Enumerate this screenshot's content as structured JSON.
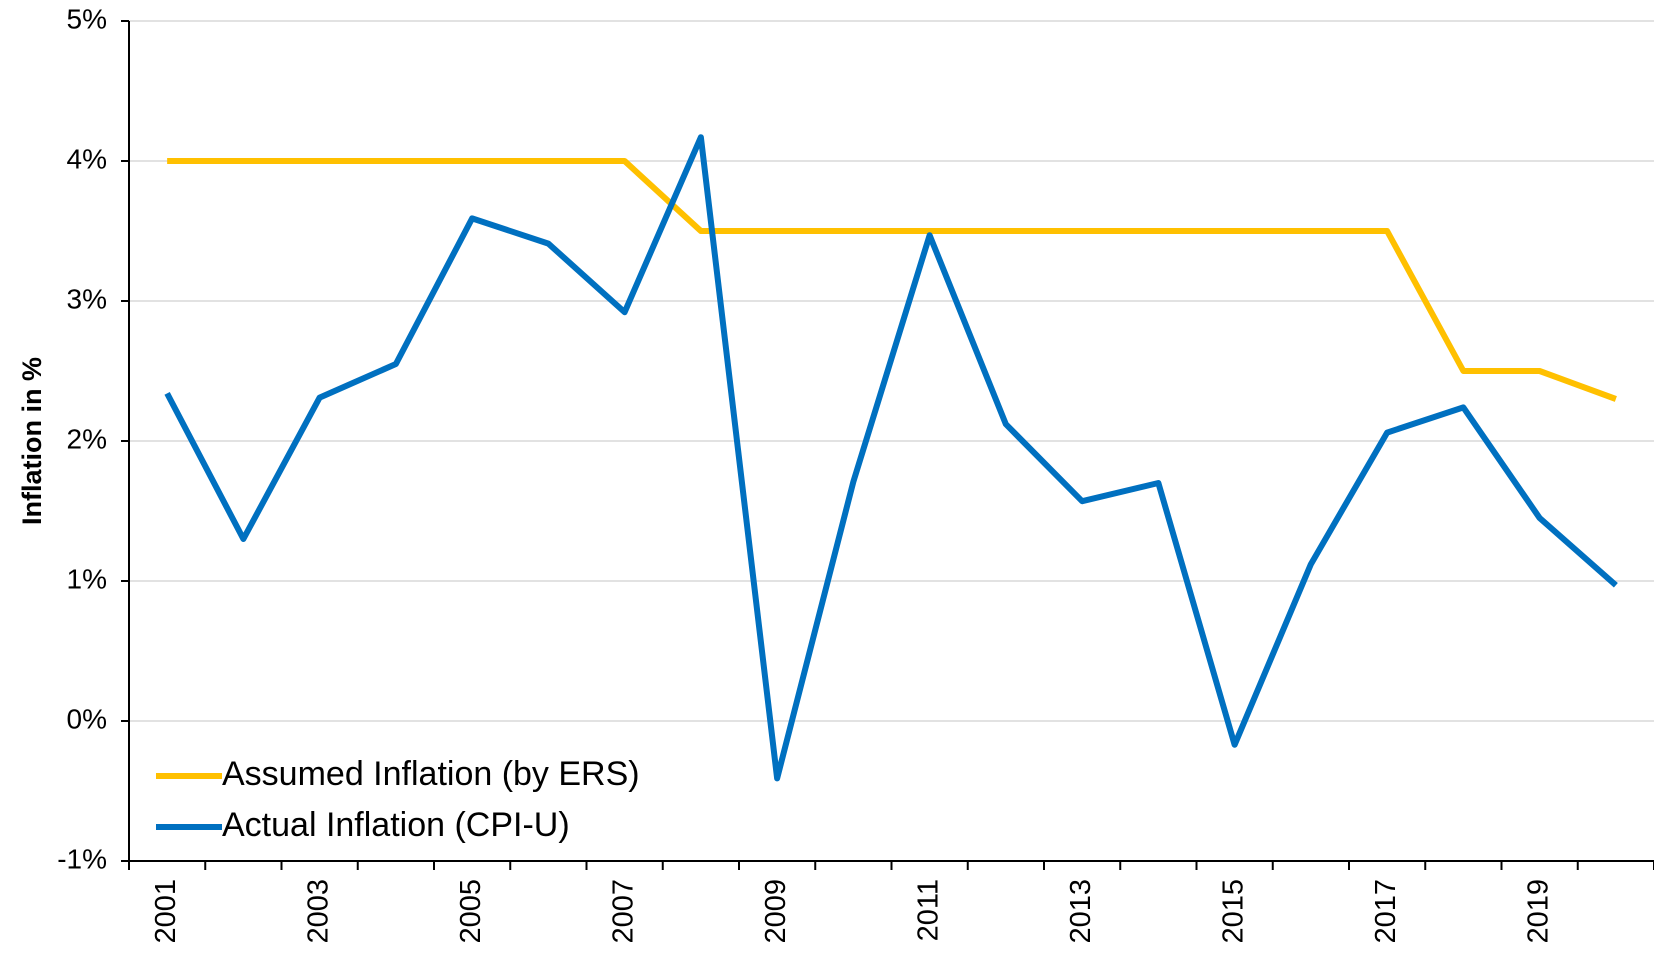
{
  "chart_data": {
    "type": "line",
    "y_label": "Inflation in %",
    "categories": [
      "2001",
      null,
      "2003",
      null,
      "2005",
      null,
      "2007",
      null,
      "2009",
      null,
      "2011",
      null,
      "2013",
      null,
      "2015",
      null,
      "2017",
      null,
      "2019",
      null
    ],
    "series": [
      {
        "name": "Assumed Inflation (by ERS)",
        "color": "#FFC000",
        "values": [
          4,
          4,
          4,
          4,
          4,
          4,
          4,
          3.5,
          3.5,
          3.5,
          3.5,
          3.5,
          3.5,
          3.5,
          3.5,
          3.5,
          3.5,
          2.5,
          2.5,
          2.3
        ]
      },
      {
        "name": "Actual Inflation (CPI-U)",
        "color": "#0070C0",
        "values": [
          2.34,
          1.3,
          2.31,
          2.55,
          3.59,
          3.41,
          2.92,
          4.17,
          -0.41,
          1.71,
          3.47,
          2.12,
          1.57,
          1.7,
          -0.17,
          1.12,
          2.06,
          2.24,
          1.45,
          0.97
        ]
      }
    ],
    "ylim": [
      -1,
      5
    ],
    "yticks": [
      {
        "value": -1,
        "label": "-1%"
      },
      {
        "value": 0,
        "label": "0%"
      },
      {
        "value": 1,
        "label": "1%"
      },
      {
        "value": 2,
        "label": "2%"
      },
      {
        "value": 3,
        "label": "3%"
      },
      {
        "value": 4,
        "label": "4%"
      },
      {
        "value": 5,
        "label": "5%"
      }
    ],
    "grid": true,
    "legend": "lower left"
  }
}
